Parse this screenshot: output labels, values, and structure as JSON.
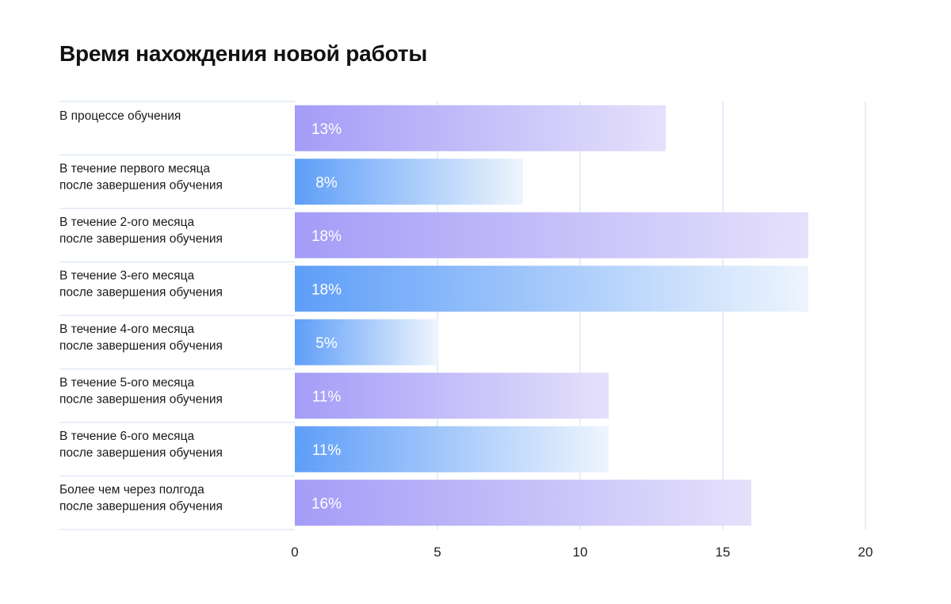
{
  "chart_data": {
    "type": "bar",
    "orientation": "horizontal",
    "title": "Время нахождения новой работы",
    "categories": [
      [
        "В процессе обучения"
      ],
      [
        "В течение первого месяца",
        "после завершения обучения"
      ],
      [
        "В течение 2-ого месяца",
        "после завершения обучения"
      ],
      [
        "В течение 3-его месяца",
        "после завершения обучения"
      ],
      [
        "В течение 4-ого месяца",
        "после завершения обучения"
      ],
      [
        "В течение 5-ого месяца",
        "после завершения обучения"
      ],
      [
        "В течение 6-ого месяца",
        "после завершения обучения"
      ],
      [
        "Более чем через полгода",
        "после завершения обучения"
      ]
    ],
    "values": [
      13,
      8,
      18,
      18,
      5,
      11,
      11,
      16
    ],
    "value_labels": [
      "13%",
      "8%",
      "18%",
      "18%",
      "5%",
      "11%",
      "11%",
      "16%"
    ],
    "xlim": [
      0,
      20
    ],
    "xticks": [
      0,
      5,
      10,
      15,
      20
    ],
    "xlabel": "",
    "ylabel": "",
    "grid": true,
    "legend": "none",
    "colors": {
      "purple_start": "#a49cf7",
      "purple_end": "#e5e1fb",
      "blue_start": "#5e9ef8",
      "blue_end": "#eef5fd",
      "grid": "#d6e3f3",
      "separator": "#dfe8f4"
    },
    "bar_styles": [
      "purple",
      "blue",
      "purple",
      "blue",
      "blue",
      "purple",
      "blue",
      "purple"
    ]
  }
}
